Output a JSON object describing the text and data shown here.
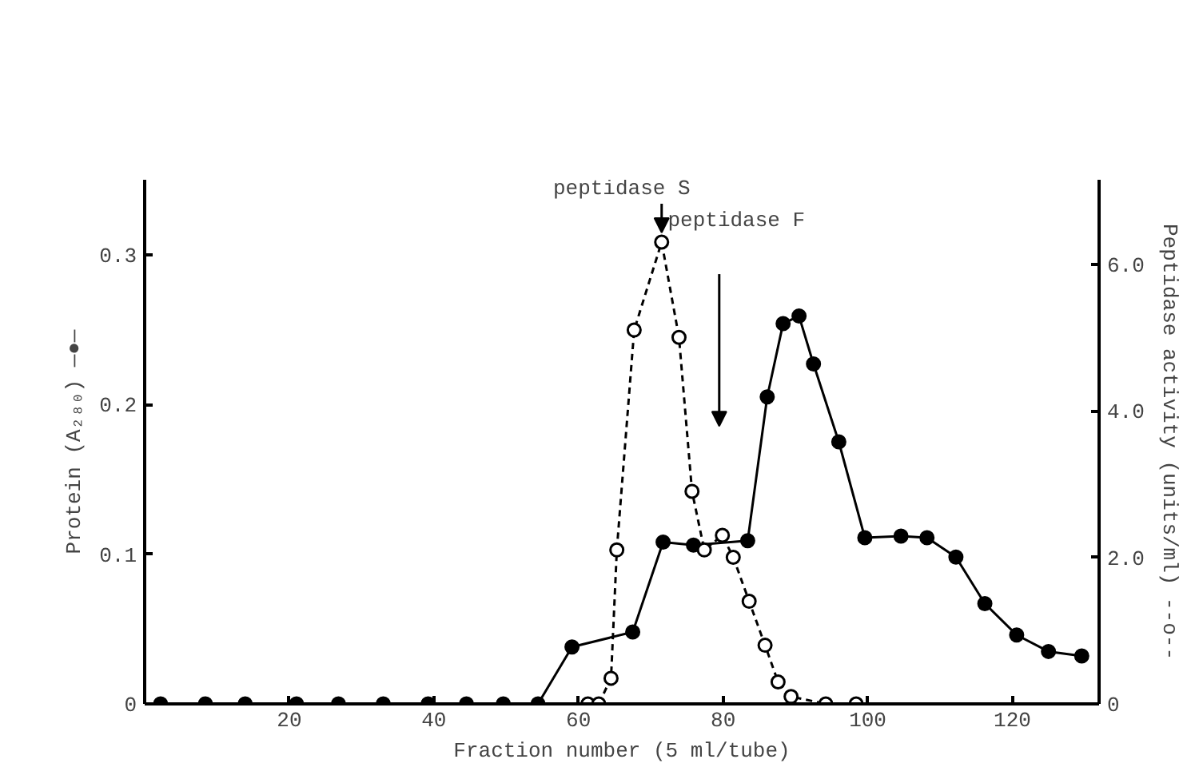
{
  "chart_data": {
    "type": "line",
    "xlabel": "Fraction number (5 ml/tube)",
    "ylabel": "Protein (A₂₈₀) —●—",
    "y2label": "Peptidase activity (units/ml) --o--",
    "xlim": [
      0,
      132
    ],
    "xticks": [
      20,
      40,
      60,
      80,
      100,
      120
    ],
    "ylim": [
      0,
      0.35
    ],
    "yticks": [
      0,
      0.1,
      0.2,
      0.3
    ],
    "y2lim": [
      0,
      7.15
    ],
    "y2ticks": [
      0,
      {
        "value": 2,
        "label": "2.0"
      },
      {
        "value": 4,
        "label": "4.0"
      },
      {
        "value": 6,
        "label": "6.0"
      }
    ],
    "marker": "circle",
    "grid": false,
    "series": [
      {
        "color": "#000000",
        "line_style": "solid",
        "x": [
          2.2,
          8.4,
          13.9,
          21,
          26.8,
          33,
          39.2,
          44.5,
          49.6,
          54.4,
          59.1,
          67.5,
          71.7,
          75.9,
          83.4,
          86.1,
          88.3,
          90.5,
          92.5,
          96,
          99.6,
          104.6,
          108.2,
          112.2,
          116.2,
          120.6,
          125,
          129.6
        ],
        "values": [
          0,
          0,
          0,
          0,
          0,
          0,
          0,
          0,
          0,
          0,
          0.038,
          0.048,
          0.108,
          0.106,
          0.109,
          0.205,
          0.254,
          0.259,
          0.227,
          0.175,
          0.111,
          0.112,
          0.111,
          0.098,
          0.067,
          0.046,
          0.035,
          0.032
        ]
      },
      {
        "color": "#000000",
        "line_style": "dashed",
        "axis": "y2",
        "x": [
          61.3,
          62.8,
          64.5,
          65.3,
          67.7,
          71.5,
          73.9,
          75.7,
          77.4,
          79.9,
          81.4,
          83.6,
          85.8,
          87.6,
          89.4,
          94.2,
          98.4
        ],
        "values": [
          0,
          0,
          0.35,
          2.1,
          5.1,
          6.3,
          5.0,
          2.9,
          2.1,
          2.3,
          2.0,
          1.4,
          0.8,
          0.3,
          0.1,
          0,
          0
        ]
      }
    ],
    "annotations": [
      {
        "text": "peptidase S",
        "x": 71.5,
        "y": 0.306
      },
      "peptidase F"
    ]
  }
}
